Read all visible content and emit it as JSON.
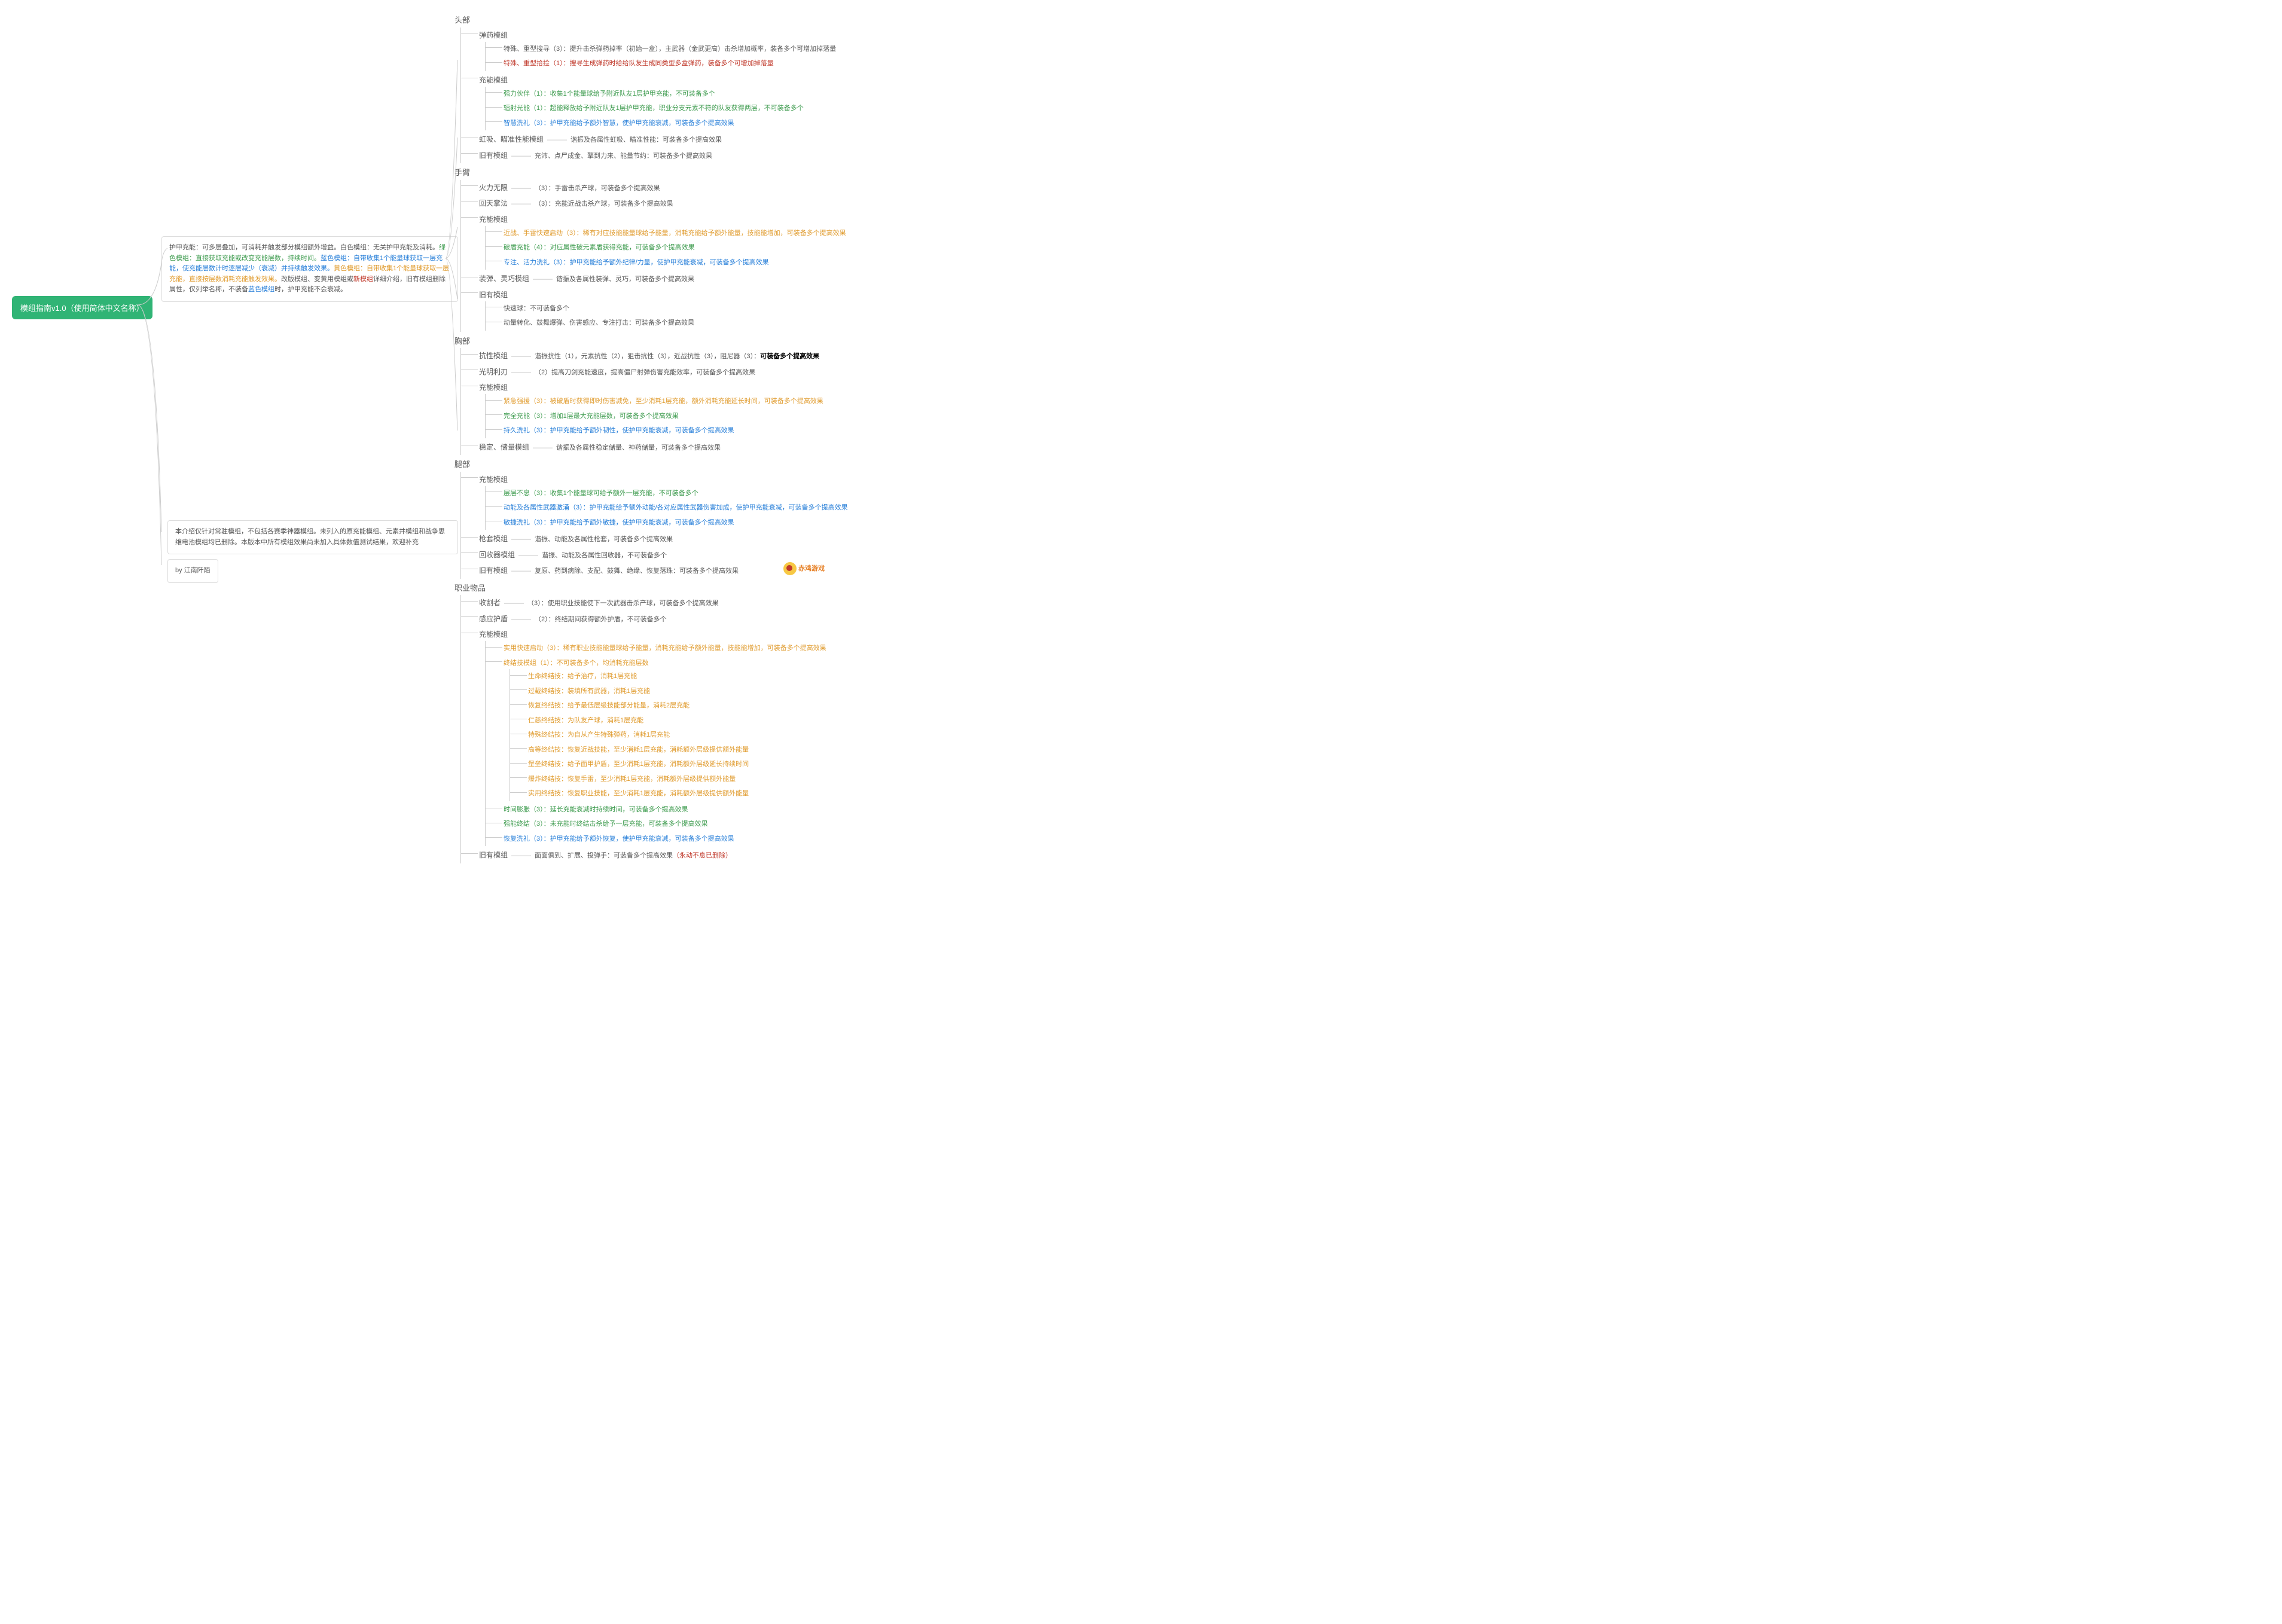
{
  "root_title": "模组指南v1.0（使用简体中文名称）",
  "note_main_parts": [
    {
      "t": "护甲充能：可多层叠加，可消耗并触发部分模组额外增益。白色模组：无关护甲充能及消耗。",
      "c": "c-gray"
    },
    {
      "t": "绿色模组：直接获取充能或改变充能层数，持续时间。",
      "c": "c-green"
    },
    {
      "t": "蓝色模组：自带收集1个能量球获取一层充能，使充能层数计时逐层减少（衰减）并持续触发效果。",
      "c": "c-blue"
    },
    {
      "t": "黄色模组：自带收集1个能量球获取一层充能，直接按层数消耗充能触发效果。",
      "c": "c-orange"
    },
    {
      "t": "改版模组、变黄用模组或",
      "c": "c-gray"
    },
    {
      "t": "新模组",
      "c": "c-red"
    },
    {
      "t": "详细介绍，旧有模组删除属性，仅列举名称，不装备",
      "c": "c-gray"
    },
    {
      "t": "蓝色模组",
      "c": "c-blue"
    },
    {
      "t": "时，护甲充能不会衰减。",
      "c": "c-gray"
    }
  ],
  "note_bottom": "本介绍仅针对常驻模组，不包括各赛季神器模组。未列入的原充能模组、元素井模组和战争思维电池模组均已删除。本版本中所有模组效果尚未加入具体数值测试结果，欢迎补充",
  "note_author": "by 江南阡陌",
  "logo_text": "赤鸡游戏",
  "sections": [
    {
      "name": "头部",
      "groups": [
        {
          "name": "弹药模组",
          "color": "c-red",
          "items": [
            {
              "t": "特殊、重型搜寻（3）：提升击杀弹药掉率（初始一盒），主武器（金武更高）击杀增加概率，装备多个可增加掉落量",
              "c": "c-gray"
            },
            {
              "t": "特殊、重型拾捡（1）：搜寻生成弹药时给给队友生成同类型多盒弹药，装备多个可增加掉落量",
              "c": "c-red"
            }
          ]
        },
        {
          "name": "充能模组",
          "items": [
            {
              "t": "强力伙伴（1）：收集1个能量球给予附近队友1层护甲充能，不可装备多个",
              "c": "c-green"
            },
            {
              "t": "辐射光能（1）：超能释放给予附近队友1层护甲充能，职业分支元素不符的队友获得两层，不可装备多个",
              "c": "c-green"
            },
            {
              "t": "智慧洗礼（3）：护甲充能给予额外智慧，使护甲充能衰减，可装备多个提高效果",
              "c": "c-blue"
            }
          ]
        },
        {
          "name": "虹吸、瞄准性能模组",
          "dash": true,
          "items": [
            {
              "t": "谐振及各属性虹吸、瞄准性能：可装备多个提高效果",
              "c": "c-gray"
            }
          ]
        },
        {
          "name": "旧有模组",
          "dash": true,
          "items": [
            {
              "t": "充沛、点尸成金、擎到力来、能量节约：可装备多个提高效果",
              "c": "c-gray"
            }
          ]
        }
      ]
    },
    {
      "name": "手臂",
      "groups": [
        {
          "name": "火力无限",
          "dash": true,
          "color": "c-red",
          "items": [
            {
              "t": "（3）：手雷击杀产球，可装备多个提高效果",
              "c": "c-gray"
            }
          ]
        },
        {
          "name": "回天掌法",
          "dash": true,
          "color": "c-red",
          "items": [
            {
              "t": "（3）：充能近战击杀产球，可装备多个提高效果",
              "c": "c-gray"
            }
          ]
        },
        {
          "name": "充能模组",
          "items": [
            {
              "t": "近战、手雷快速启动（3）：稀有对应技能能量球给予能量，消耗充能给予额外能量，技能能增加，可装备多个提高效果",
              "c": "c-orange"
            },
            {
              "t": "破盾充能（4）：对应属性破元素盾获得充能，可装备多个提高效果",
              "c": "c-green"
            },
            {
              "t": "专注、活力洗礼（3）：护甲充能给予额外纪律/力量，使护甲充能衰减，可装备多个提高效果",
              "c": "c-blue"
            }
          ]
        },
        {
          "name": "装弹、灵巧模组",
          "dash": true,
          "items": [
            {
              "t": "谐振及各属性装弹、灵巧，可装备多个提高效果",
              "c": "c-gray"
            }
          ]
        },
        {
          "name": "旧有模组",
          "items": [
            {
              "t": "快速球：不可装备多个",
              "c": "c-gray"
            },
            {
              "t": "动量转化、鼓舞爆弹、伤害感应、专注打击：可装备多个提高效果",
              "c": "c-gray"
            }
          ]
        }
      ]
    },
    {
      "name": "胸部",
      "groups": [
        {
          "name": "抗性模组",
          "dash": true,
          "items": [
            {
              "t": "谐振抗性（1），元素抗性（2），狙击抗性（3），近战抗性（3），阻尼器（3）：可装备多个提高效果",
              "c": "c-gray",
              "bold_tail": "可装备多个提高效果"
            }
          ]
        },
        {
          "name": "光明利刃",
          "dash": true,
          "color": "c-red",
          "items": [
            {
              "t": "（2）提高刀剑充能速度，提高僵尸射弹伤害充能效率，可装备多个提高效果",
              "c": "c-gray"
            }
          ]
        },
        {
          "name": "充能模组",
          "items": [
            {
              "t": "紧急强援（3）：被破盾时获得即时伤害减免，至少消耗1层充能，额外消耗充能延长时间，可装备多个提高效果",
              "c": "c-orange"
            },
            {
              "t": "完全充能（3）：增加1层最大充能层数，可装备多个提高效果",
              "c": "c-green"
            },
            {
              "t": "持久洗礼（3）：护甲充能给予额外韧性，使护甲充能衰减，可装备多个提高效果",
              "c": "c-blue"
            }
          ]
        },
        {
          "name": "稳定、储量模组",
          "dash": true,
          "items": [
            {
              "t": "谐振及各属性稳定储量、神药储量，可装备多个提高效果",
              "c": "c-gray"
            }
          ]
        }
      ]
    },
    {
      "name": "腿部",
      "groups": [
        {
          "name": "充能模组",
          "items": [
            {
              "t": "层层不息（3）：收集1个能量球可给予额外一层充能，不可装备多个",
              "c": "c-green"
            },
            {
              "t": "动能及各属性武器激涌（3）：护甲充能给予额外动能/各对应属性武器伤害加成，使护甲充能衰减，可装备多个提高效果",
              "c": "c-blue"
            },
            {
              "t": "敏捷洗礼（3）：护甲充能给予额外敏捷，使护甲充能衰减，可装备多个提高效果",
              "c": "c-blue"
            }
          ]
        },
        {
          "name": "枪套模组",
          "dash": true,
          "items": [
            {
              "t": "谐振、动能及各属性枪套，可装备多个提高效果",
              "c": "c-gray"
            }
          ]
        },
        {
          "name": "回收器模组",
          "dash": true,
          "items": [
            {
              "t": "谐振、动能及各属性回收器，不可装备多个",
              "c": "c-gray"
            }
          ]
        },
        {
          "name": "旧有模组",
          "dash": true,
          "items": [
            {
              "t": "复原、药到病除、支配、鼓舞、绝缘、恢复落珠：可装备多个提高效果",
              "c": "c-gray"
            }
          ]
        }
      ]
    },
    {
      "name": "职业物品",
      "groups": [
        {
          "name": "收割者",
          "dash": true,
          "color": "c-red",
          "items": [
            {
              "t": "（3）：使用职业技能使下一次武器击杀产球，可装备多个提高效果",
              "c": "c-gray"
            }
          ]
        },
        {
          "name": "感应护盾",
          "dash": true,
          "color": "c-red",
          "items": [
            {
              "t": "（2）：终结期间获得额外护盾，不可装备多个",
              "c": "c-gray"
            }
          ]
        },
        {
          "name": "充能模组",
          "items": [
            {
              "t": "实用快速启动（3）：稀有职业技能能量球给予能量，消耗充能给予额外能量，技能能增加，可装备多个提高效果",
              "c": "c-orange"
            },
            {
              "t": "终结技模组（1）：不可装备多个，均消耗充能层数",
              "c": "c-orange",
              "children": [
                {
                  "t": "生命终结技：给予治疗，消耗1层充能",
                  "c": "c-orange"
                },
                {
                  "t": "过载终结技：装填所有武器，消耗1层充能",
                  "c": "c-orange"
                },
                {
                  "t": "恢复终结技：给予最低层级技能部分能量，消耗2层充能",
                  "c": "c-orange"
                },
                {
                  "t": "仁慈终结技：为队友产球，消耗1层充能",
                  "c": "c-orange"
                },
                {
                  "t": "特殊终结技：为自从产生特殊弹药，消耗1层充能",
                  "c": "c-orange"
                },
                {
                  "t": "高等终结技：恢复近战技能，至少消耗1层充能，消耗额外层级提供额外能量",
                  "c": "c-orange"
                },
                {
                  "t": "堡垒终结技：给予面甲护盾，至少消耗1层充能，消耗额外层级延长持续时间",
                  "c": "c-orange"
                },
                {
                  "t": "爆炸终结技：恢复手雷，至少消耗1层充能，消耗额外层级提供额外能量",
                  "c": "c-orange"
                },
                {
                  "t": "实用终结技：恢复职业技能，至少消耗1层充能，消耗额外层级提供额外能量",
                  "c": "c-orange"
                }
              ]
            },
            {
              "t": "时间膨胀（3）：延长充能衰减时持续时间，可装备多个提高效果",
              "c": "c-green"
            },
            {
              "t": "强能终结（3）：未充能时终结击杀给予一层充能，可装备多个提高效果",
              "c": "c-green"
            },
            {
              "t": "恢复洗礼（3）：护甲充能给予额外恢复，使护甲充能衰减，可装备多个提高效果",
              "c": "c-blue"
            }
          ]
        },
        {
          "name": "旧有模组",
          "dash": true,
          "items": [
            {
              "t": "面面俱到、扩展、投弹手：可装备多个提高效果（永动不息已删除）",
              "c": "c-gray",
              "red_tail": "（永动不息已删除）"
            }
          ]
        }
      ]
    }
  ]
}
